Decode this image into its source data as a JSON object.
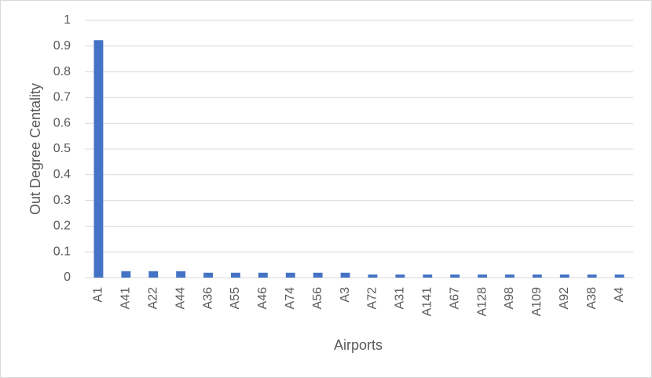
{
  "chart_data": {
    "type": "bar",
    "x_label": "Airports",
    "y_label": "Out Degree Centality",
    "categories": [
      "A1",
      "A41",
      "A22",
      "A44",
      "A36",
      "A55",
      "A46",
      "A74",
      "A56",
      "A3",
      "A72",
      "A31",
      "A141",
      "A67",
      "A128",
      "A98",
      "A109",
      "A92",
      "A38",
      "A4"
    ],
    "values": [
      0.923,
      0.025,
      0.025,
      0.025,
      0.019,
      0.019,
      0.019,
      0.019,
      0.019,
      0.019,
      0.012,
      0.012,
      0.012,
      0.012,
      0.012,
      0.012,
      0.012,
      0.012,
      0.012,
      0.012
    ],
    "color": "#4472c4",
    "ylim": [
      0,
      1
    ],
    "yticks": [
      0,
      0.1,
      0.2,
      0.3,
      0.4,
      0.5,
      0.6,
      0.7,
      0.8,
      0.9,
      1
    ],
    "grid": true
  }
}
